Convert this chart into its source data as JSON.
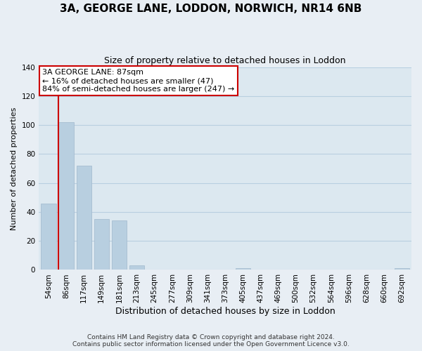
{
  "title": "3A, GEORGE LANE, LODDON, NORWICH, NR14 6NB",
  "subtitle": "Size of property relative to detached houses in Loddon",
  "xlabel": "Distribution of detached houses by size in Loddon",
  "ylabel": "Number of detached properties",
  "bar_labels": [
    "54sqm",
    "86sqm",
    "117sqm",
    "149sqm",
    "181sqm",
    "213sqm",
    "245sqm",
    "277sqm",
    "309sqm",
    "341sqm",
    "373sqm",
    "405sqm",
    "437sqm",
    "469sqm",
    "500sqm",
    "532sqm",
    "564sqm",
    "596sqm",
    "628sqm",
    "660sqm",
    "692sqm"
  ],
  "bar_values": [
    46,
    102,
    72,
    35,
    34,
    3,
    0,
    0,
    0,
    0,
    0,
    1,
    0,
    0,
    0,
    0,
    0,
    0,
    0,
    0,
    1
  ],
  "bar_color": "#b8cfe0",
  "bar_edge_color": "#a0b8cc",
  "marker_line_color": "#cc0000",
  "ylim": [
    0,
    140
  ],
  "yticks": [
    0,
    20,
    40,
    60,
    80,
    100,
    120,
    140
  ],
  "annotation_lines": [
    "3A GEORGE LANE: 87sqm",
    "← 16% of detached houses are smaller (47)",
    "84% of semi-detached houses are larger (247) →"
  ],
  "annotation_box_color": "#ffffff",
  "annotation_box_edge": "#cc0000",
  "footer_lines": [
    "Contains HM Land Registry data © Crown copyright and database right 2024.",
    "Contains public sector information licensed under the Open Government Licence v3.0."
  ],
  "background_color": "#e8eef4",
  "plot_background_color": "#dce8f0",
  "grid_color": "#b8cfe0",
  "title_fontsize": 11,
  "subtitle_fontsize": 9,
  "xlabel_fontsize": 9,
  "ylabel_fontsize": 8,
  "tick_fontsize": 7.5,
  "footer_fontsize": 6.5,
  "annotation_fontsize": 8
}
